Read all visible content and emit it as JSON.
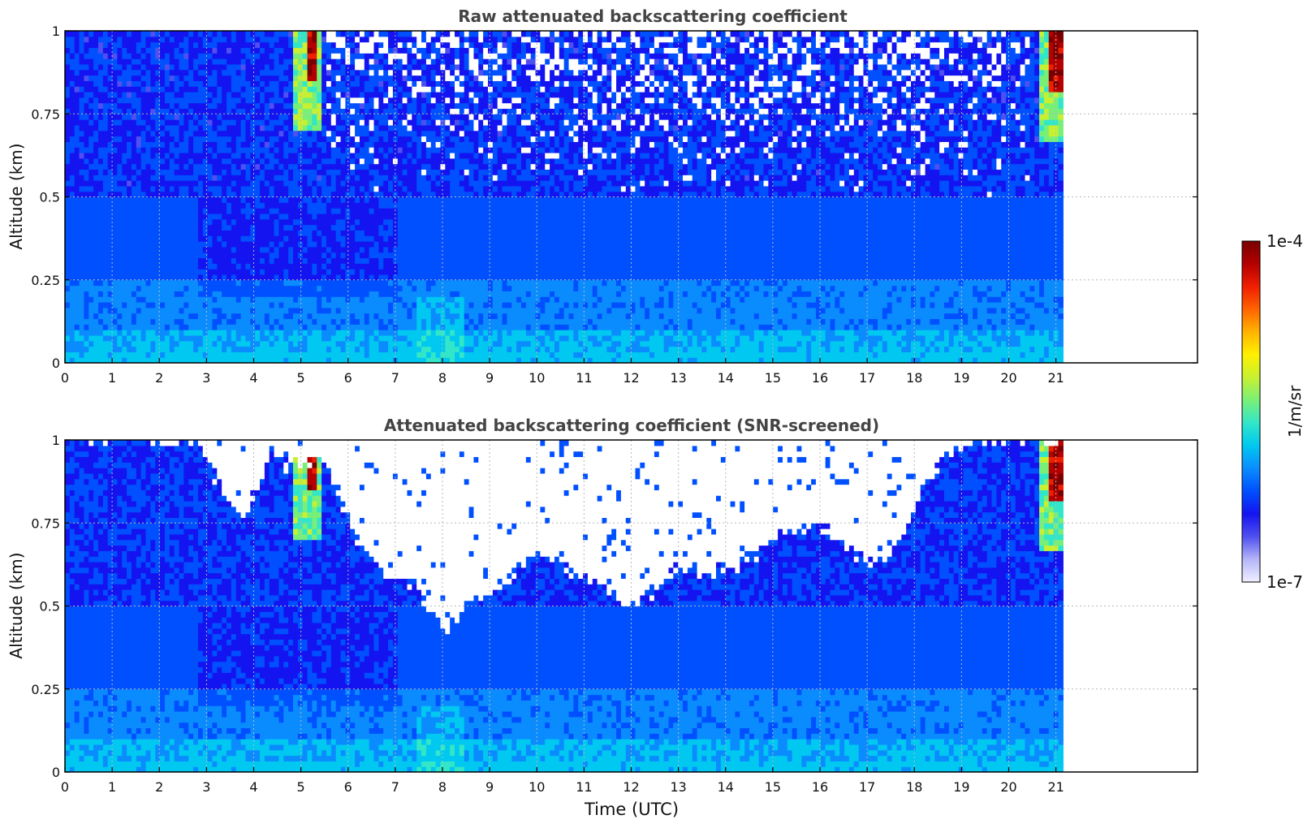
{
  "chart_data": [
    {
      "type": "heatmap",
      "title": "Raw attenuated backscattering coefficient",
      "xlabel": "",
      "ylabel": "Altitude (km)",
      "xlim": [
        0,
        24
      ],
      "ylim": [
        0,
        1
      ],
      "x_ticks": [
        "0",
        "1",
        "2",
        "3",
        "4",
        "5",
        "6",
        "7",
        "8",
        "9",
        "10",
        "11",
        "12",
        "13",
        "14",
        "15",
        "16",
        "17",
        "18",
        "19",
        "20",
        "21"
      ],
      "y_ticks": [
        "0",
        "0.25",
        "0.5",
        "0.75",
        "1"
      ],
      "data_extent_x": [
        0,
        21.15
      ],
      "grid": true,
      "features": [
        {
          "time_range": [
            5.1,
            5.35
          ],
          "altitude_range": [
            0.85,
            1.0
          ],
          "level": "high"
        },
        {
          "time_range": [
            20.85,
            21.15
          ],
          "altitude_range": [
            0.82,
            0.95
          ],
          "level": "high"
        }
      ],
      "screened": false
    },
    {
      "type": "heatmap",
      "title": "Attenuated backscattering coefficient (SNR-screened)",
      "xlabel": "Time (UTC)",
      "ylabel": "Altitude (km)",
      "xlim": [
        0,
        24
      ],
      "ylim": [
        0,
        1
      ],
      "x_ticks": [
        "0",
        "1",
        "2",
        "3",
        "4",
        "5",
        "6",
        "7",
        "8",
        "9",
        "10",
        "11",
        "12",
        "13",
        "14",
        "15",
        "16",
        "17",
        "18",
        "19",
        "20",
        "21"
      ],
      "y_ticks": [
        "0",
        "0.25",
        "0.5",
        "0.75",
        "1"
      ],
      "data_extent_x": [
        0,
        21.15
      ],
      "grid": true,
      "screened_top_boundary": [
        [
          0,
          1.0
        ],
        [
          2.8,
          1.0
        ],
        [
          3.2,
          0.88
        ],
        [
          3.8,
          0.75
        ],
        [
          4.3,
          0.95
        ],
        [
          4.7,
          0.92
        ],
        [
          5.5,
          0.95
        ],
        [
          6.2,
          0.7
        ],
        [
          6.8,
          0.6
        ],
        [
          7.5,
          0.55
        ],
        [
          8.0,
          0.42
        ],
        [
          8.6,
          0.52
        ],
        [
          9.2,
          0.55
        ],
        [
          10.0,
          0.68
        ],
        [
          10.5,
          0.62
        ],
        [
          11.0,
          0.58
        ],
        [
          11.5,
          0.55
        ],
        [
          12.0,
          0.5
        ],
        [
          12.5,
          0.55
        ],
        [
          13.0,
          0.62
        ],
        [
          13.5,
          0.6
        ],
        [
          14.2,
          0.62
        ],
        [
          15.0,
          0.7
        ],
        [
          15.8,
          0.75
        ],
        [
          16.3,
          0.72
        ],
        [
          16.8,
          0.65
        ],
        [
          17.3,
          0.62
        ],
        [
          17.8,
          0.72
        ],
        [
          18.2,
          0.85
        ],
        [
          18.7,
          0.95
        ],
        [
          19.2,
          1.0
        ],
        [
          21.15,
          1.0
        ]
      ],
      "screened": true
    }
  ],
  "colorbar": {
    "label": "1/m/sr",
    "max_label": "1e-4",
    "min_label": "1e-7",
    "colormap": [
      "#f0f0ff",
      "#b4b4f8",
      "#5050f0",
      "#1414f0",
      "#0050ff",
      "#0a8cff",
      "#00c8f0",
      "#32e6c8",
      "#78f078",
      "#c8f032",
      "#fff000",
      "#ffb400",
      "#ff6400",
      "#f01e00",
      "#b40000",
      "#780000"
    ]
  }
}
